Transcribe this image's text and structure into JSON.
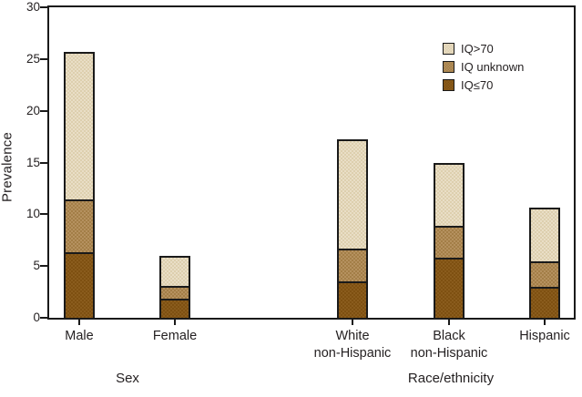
{
  "figure": {
    "background": "#ffffff",
    "text_color": "#231f20",
    "axis_color": "#1a1a1a"
  },
  "chart_data": {
    "type": "bar",
    "stacked": true,
    "title": "",
    "xlabel": "",
    "ylabel": "Prevalence",
    "ylim": [
      0,
      30
    ],
    "yticks": [
      0,
      5,
      10,
      15,
      20,
      25,
      30
    ],
    "grid": false,
    "legend_position": "inside-top-right",
    "legend_labels": [
      "IQ>70",
      "IQ unknown",
      "IQ≤70"
    ],
    "groups": [
      {
        "label": "Sex"
      },
      {
        "label": "Race/ethnicity"
      }
    ],
    "categories": [
      {
        "label_lines": [
          "Male"
        ],
        "group": "Sex",
        "total": 25.5
      },
      {
        "label_lines": [
          "Female"
        ],
        "group": "Sex",
        "total": 5.8
      },
      {
        "label_lines": [
          "White",
          "non-Hispanic"
        ],
        "group": "Race/ethnicity",
        "total": 17.1
      },
      {
        "label_lines": [
          "Black",
          "non-Hispanic"
        ],
        "group": "Race/ethnicity",
        "total": 14.8
      },
      {
        "label_lines": [
          "Hispanic"
        ],
        "group": "Race/ethnicity",
        "total": 10.5
      }
    ],
    "series": [
      {
        "name": "IQ≤70",
        "color": "#8a5c1d",
        "color_alt": "#7e5011",
        "values": [
          6.2,
          1.8,
          3.4,
          5.8,
          2.9
        ]
      },
      {
        "name": "IQ unknown",
        "color": "#b5915f",
        "color_alt": "#a37e47",
        "values": [
          5.0,
          1.1,
          3.1,
          2.9,
          2.4
        ]
      },
      {
        "name": "IQ>70",
        "color": "#e9dec6",
        "color_alt": "#ddcfae",
        "values": [
          14.3,
          2.9,
          10.6,
          6.1,
          5.2
        ]
      }
    ],
    "stack_order": "bottom-to-top"
  }
}
